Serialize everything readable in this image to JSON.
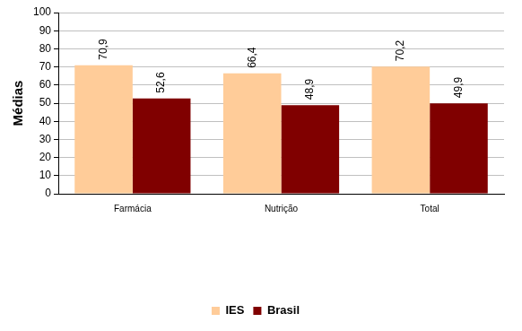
{
  "chart_data": {
    "type": "bar",
    "categories": [
      "Farmácia",
      "Nutrição",
      "Total"
    ],
    "series": [
      {
        "name": "IES",
        "color": "#FFCC99",
        "values": [
          70.9,
          66.4,
          70.2
        ],
        "value_labels": [
          "70,9",
          "66,4",
          "70,2"
        ]
      },
      {
        "name": "Brasil",
        "color": "#800000",
        "values": [
          52.6,
          48.9,
          49.9
        ],
        "value_labels": [
          "52,6",
          "48,9",
          "49,9"
        ]
      }
    ],
    "y_label": "Médias",
    "ylim": [
      0,
      100
    ],
    "yticks": [
      0,
      10,
      20,
      30,
      40,
      50,
      60,
      70,
      80,
      90,
      100
    ],
    "grid": true,
    "legend": "bottom",
    "data_labels": true
  }
}
